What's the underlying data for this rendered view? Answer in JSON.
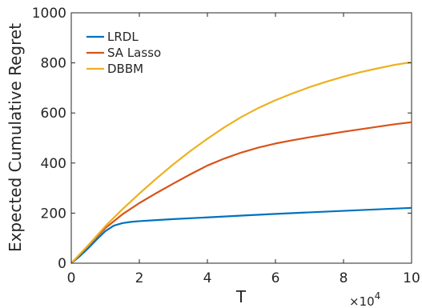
{
  "chart_data": {
    "type": "line",
    "title": "",
    "xlabel": "T",
    "ylabel": "Expected Cumulative Regret",
    "x_multiplier_label": "×10",
    "x_multiplier_exp": "4",
    "xlim": [
      0,
      10
    ],
    "ylim": [
      0,
      1000
    ],
    "xticks": [
      0,
      2,
      4,
      6,
      8,
      10
    ],
    "yticks": [
      0,
      200,
      400,
      600,
      800,
      1000
    ],
    "grid": false,
    "legend_position": "top-left",
    "series": [
      {
        "name": "LRDL",
        "color": "#0072BD",
        "x": [
          0,
          0.25,
          0.5,
          0.75,
          1.0,
          1.25,
          1.5,
          1.75,
          2.0,
          2.5,
          3,
          4,
          5,
          6,
          7,
          8,
          9,
          10
        ],
        "y": [
          0,
          28,
          60,
          95,
          128,
          150,
          160,
          165,
          168,
          172,
          176,
          183,
          190,
          197,
          203,
          209,
          215,
          221
        ]
      },
      {
        "name": "SA Lasso",
        "color": "#D95319",
        "x": [
          0,
          0.5,
          1.0,
          1.5,
          2.0,
          2.5,
          3.0,
          3.5,
          4.0,
          4.5,
          5.0,
          5.5,
          6.0,
          6.5,
          7.0,
          7.5,
          8.0,
          8.5,
          9.0,
          9.5,
          10.0
        ],
        "y": [
          0,
          70,
          140,
          195,
          240,
          280,
          318,
          355,
          390,
          418,
          442,
          462,
          478,
          491,
          503,
          514,
          525,
          535,
          545,
          555,
          563
        ]
      },
      {
        "name": "DBBM",
        "color": "#EDB120",
        "x": [
          0,
          0.5,
          1.0,
          1.5,
          2.0,
          2.5,
          3.0,
          3.5,
          4.0,
          4.5,
          5.0,
          5.5,
          6.0,
          6.5,
          7.0,
          7.5,
          8.0,
          8.5,
          9.0,
          9.5,
          10.0
        ],
        "y": [
          0,
          72,
          148,
          215,
          278,
          338,
          395,
          448,
          497,
          543,
          584,
          620,
          651,
          678,
          703,
          725,
          745,
          763,
          778,
          792,
          803
        ]
      }
    ]
  }
}
